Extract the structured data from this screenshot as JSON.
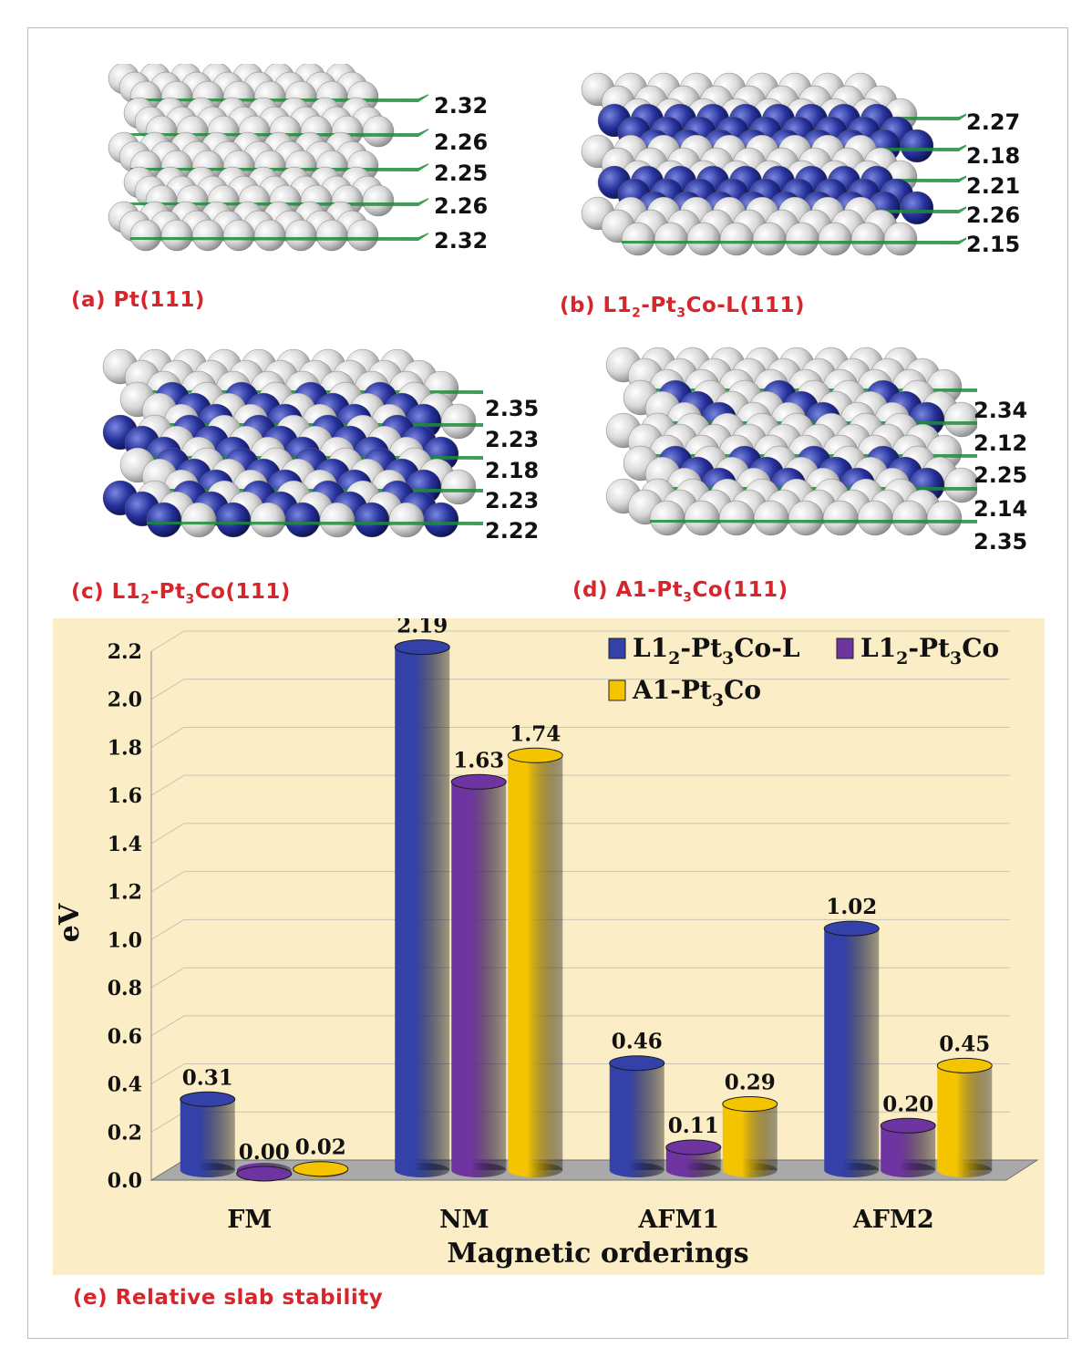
{
  "panels": [
    {
      "id": "a",
      "caption": "(a) Pt(111)",
      "spacings": [
        "2.32",
        "2.26",
        "2.25",
        "2.26",
        "2.32"
      ]
    },
    {
      "id": "b",
      "caption_parts": [
        "(b) L1",
        "2",
        "-Pt",
        "3",
        "Co-L(111)"
      ],
      "spacings": [
        "2.27",
        "2.18",
        "2.21",
        "2.26",
        "2.15"
      ]
    },
    {
      "id": "c",
      "caption_parts": [
        "(c) L1",
        "2",
        "-Pt",
        "3",
        "Co(111)"
      ],
      "spacings": [
        "2.35",
        "2.23",
        "2.18",
        "2.23",
        "2.22"
      ]
    },
    {
      "id": "d",
      "caption_parts": [
        "(d) A1-Pt",
        "3",
        "Co(111)"
      ],
      "spacings": [
        "2.34",
        "2.12",
        "2.25",
        "2.14",
        "2.35"
      ]
    }
  ],
  "colors": {
    "pt_atom": "#d9d9d9",
    "co_atom": "#26319a",
    "plane": "#1e8c3a",
    "caption": "#d6262c",
    "chart_bg": "#fbedc6",
    "floor": "#a9a9a9"
  },
  "chart_caption": "(e) Relative slab stability",
  "chart_data": {
    "type": "bar",
    "xlabel": "Magnetic orderings",
    "ylabel": "eV",
    "categories": [
      "FM",
      "NM",
      "AFM1",
      "AFM2"
    ],
    "ylim": [
      0,
      2.2
    ],
    "yticks": [
      "0.0",
      "0.2",
      "0.4",
      "0.6",
      "0.8",
      "1.0",
      "1.2",
      "1.4",
      "1.6",
      "1.8",
      "2.0",
      "2.2"
    ],
    "grid": true,
    "legend_position": "top-right",
    "series": [
      {
        "name_parts": [
          "L1",
          "2",
          "-Pt",
          "3",
          "Co-L"
        ],
        "color": "#3341a8",
        "values": [
          0.31,
          2.19,
          0.46,
          1.02
        ],
        "labels": [
          "0.31",
          "2.19",
          "0.46",
          "1.02"
        ]
      },
      {
        "name_parts": [
          "L1",
          "2",
          "-Pt",
          "3",
          "Co"
        ],
        "color": "#6e34a0",
        "values": [
          0.0,
          1.63,
          0.11,
          0.2
        ],
        "labels": [
          "0.00",
          "1.63",
          "0.11",
          "0.20"
        ]
      },
      {
        "name_parts": [
          "A1-Pt",
          "3",
          "Co"
        ],
        "color": "#f5c400",
        "values": [
          0.02,
          1.74,
          0.29,
          0.45
        ],
        "labels": [
          "0.02",
          "1.74",
          "0.29",
          "0.45"
        ]
      }
    ]
  }
}
